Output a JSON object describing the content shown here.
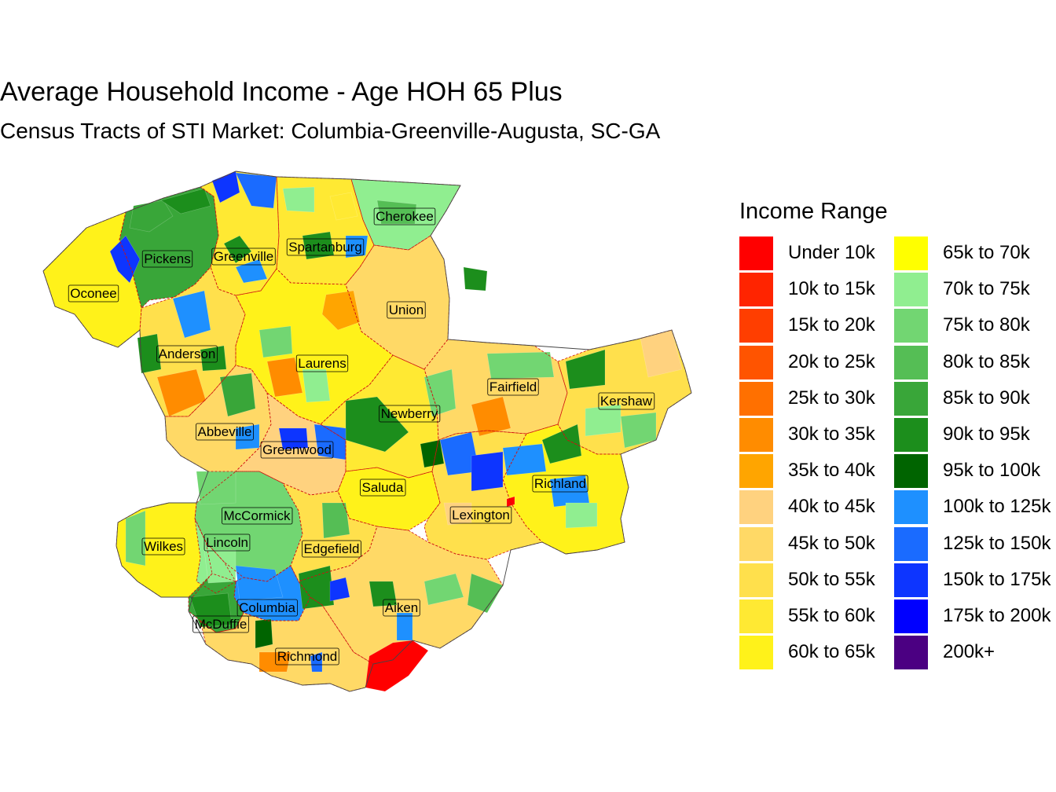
{
  "title": "Average Household Income - Age HOH 65 Plus",
  "subtitle": "Census Tracts of STI Market: Columbia-Greenville-Augusta, SC-GA",
  "legend": {
    "title": "Income Range",
    "items": [
      {
        "label": "Under 10k",
        "color": "#FF0000"
      },
      {
        "label": "10k to 15k",
        "color": "#FF2400"
      },
      {
        "label": "15k to 20k",
        "color": "#FF3E00"
      },
      {
        "label": "20k to 25k",
        "color": "#FF5400"
      },
      {
        "label": "25k to 30k",
        "color": "#FF7000"
      },
      {
        "label": "30k to 35k",
        "color": "#FF8C00"
      },
      {
        "label": "35k to 40k",
        "color": "#FFA500"
      },
      {
        "label": "40k to 45k",
        "color": "#FFD27F"
      },
      {
        "label": "45k to 50k",
        "color": "#FFD966"
      },
      {
        "label": "50k to 55k",
        "color": "#FFE04C"
      },
      {
        "label": "55k to 60k",
        "color": "#FFE933"
      },
      {
        "label": "60k to 65k",
        "color": "#FFF21A"
      },
      {
        "label": "65k to 70k",
        "color": "#FFFF00"
      },
      {
        "label": "70k to 75k",
        "color": "#90EE90"
      },
      {
        "label": "75k to 80k",
        "color": "#72D672"
      },
      {
        "label": "80k to 85k",
        "color": "#55BE55"
      },
      {
        "label": "85k to 90k",
        "color": "#39A639"
      },
      {
        "label": "90k to 95k",
        "color": "#1C8E1C"
      },
      {
        "label": "95k to 100k",
        "color": "#006400"
      },
      {
        "label": "100k to 125k",
        "color": "#1E90FF"
      },
      {
        "label": "125k to 150k",
        "color": "#1A6BFF"
      },
      {
        "label": "150k to 175k",
        "color": "#0D35FF"
      },
      {
        "label": "175k to 200k",
        "color": "#0000FF"
      },
      {
        "label": "200k+",
        "color": "#4B0082"
      }
    ]
  },
  "counties": [
    {
      "name": "Cherokee",
      "fill": "#90EE90"
    },
    {
      "name": "Pickens",
      "fill": "#39A639"
    },
    {
      "name": "Greenville",
      "fill": "#FFE933"
    },
    {
      "name": "Spartanburg",
      "fill": "#FFE933"
    },
    {
      "name": "Oconee",
      "fill": "#FFF21A"
    },
    {
      "name": "Union",
      "fill": "#FFD966"
    },
    {
      "name": "Anderson",
      "fill": "#FFE04C"
    },
    {
      "name": "Laurens",
      "fill": "#FFF21A"
    },
    {
      "name": "Fairfield",
      "fill": "#FFD966"
    },
    {
      "name": "Kershaw",
      "fill": "#FFE04C"
    },
    {
      "name": "Newberry",
      "fill": "#FFE933"
    },
    {
      "name": "Abbeville",
      "fill": "#FFD966"
    },
    {
      "name": "Greenwood",
      "fill": "#FFD27F"
    },
    {
      "name": "Richland",
      "fill": "#FFF21A"
    },
    {
      "name": "Saluda",
      "fill": "#FFF21A"
    },
    {
      "name": "Lexington",
      "fill": "#FFE04C"
    },
    {
      "name": "McCormick",
      "fill": "#72D672"
    },
    {
      "name": "Wilkes",
      "fill": "#FFF21A"
    },
    {
      "name": "Lincoln",
      "fill": "#90EE90"
    },
    {
      "name": "Edgefield",
      "fill": "#FFE04C"
    },
    {
      "name": "Columbia",
      "fill": "#1E90FF"
    },
    {
      "name": "Aiken",
      "fill": "#FFD966"
    },
    {
      "name": "McDuffie",
      "fill": "#39A639"
    },
    {
      "name": "Richmond",
      "fill": "#FFD966"
    }
  ]
}
